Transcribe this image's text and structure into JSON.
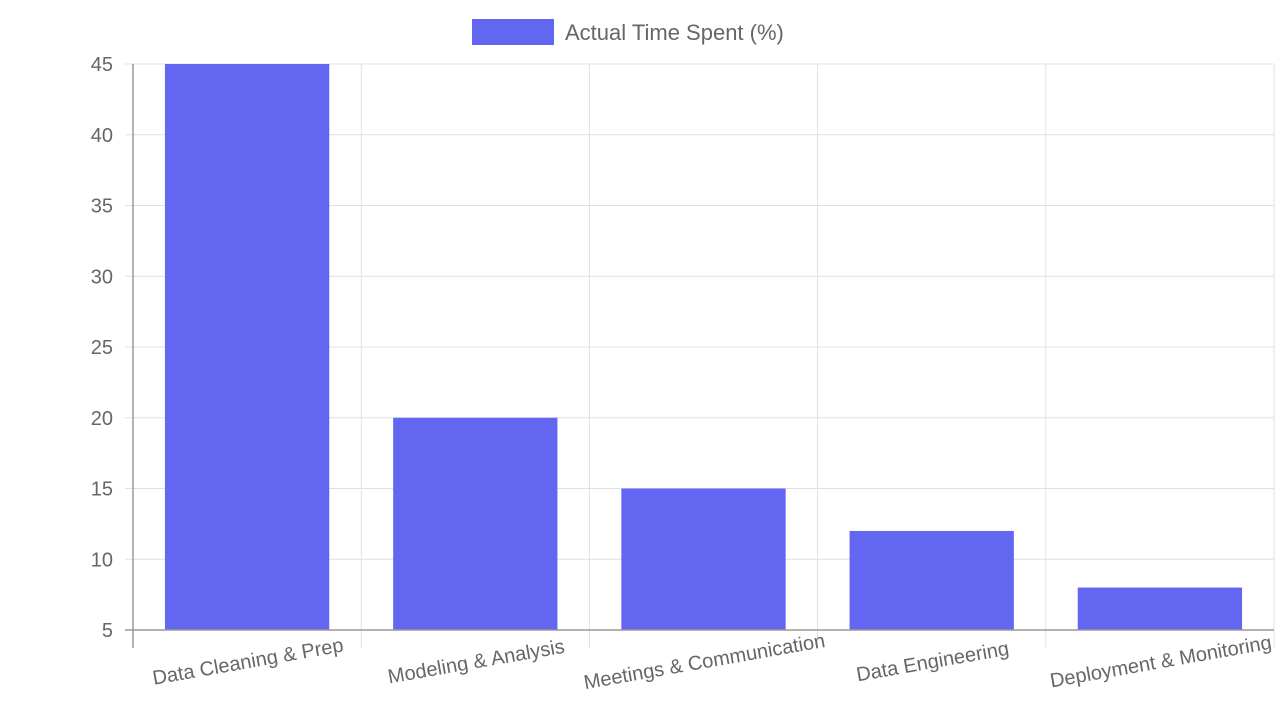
{
  "chart_data": {
    "type": "bar",
    "categories": [
      "Data Cleaning & Prep",
      "Modeling & Analysis",
      "Meetings & Communication",
      "Data Engineering",
      "Deployment & Monitoring"
    ],
    "series": [
      {
        "name": "Actual Time Spent (%)",
        "values": [
          45,
          20,
          15,
          12,
          8
        ],
        "color": "#6366f1"
      }
    ],
    "title": "",
    "xlabel": "",
    "ylabel": "",
    "ylim": [
      5,
      45
    ],
    "yticks": [
      5,
      10,
      15,
      20,
      25,
      30,
      35,
      40,
      45
    ],
    "grid": true,
    "legend": "top-center"
  }
}
